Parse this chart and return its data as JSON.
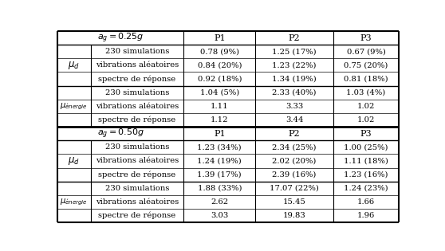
{
  "fig_width": 5.58,
  "fig_height": 3.15,
  "rows_25_mud": [
    [
      "230 simulations",
      "0.78 (9%)",
      "1.25 (17%)",
      "0.67 (9%)"
    ],
    [
      "vibrations aléatoires",
      "0.84 (20%)",
      "1.23 (22%)",
      "0.75 (20%)"
    ],
    [
      "spectre de réponse",
      "0.92 (18%)",
      "1.34 (19%)",
      "0.81 (18%)"
    ]
  ],
  "rows_25_mue": [
    [
      "230 simulations",
      "1.04 (5%)",
      "2.33 (40%)",
      "1.03 (4%)"
    ],
    [
      "vibrations aléatoires",
      "1.11",
      "3.33",
      "1.02"
    ],
    [
      "spectre de réponse",
      "1.12",
      "3.44",
      "1.02"
    ]
  ],
  "rows_50_mud": [
    [
      "230 simulations",
      "1.23 (34%)",
      "2.34 (25%)",
      "1.00 (25%)"
    ],
    [
      "vibrations aléatoires",
      "1.24 (19%)",
      "2.02 (20%)",
      "1.11 (18%)"
    ],
    [
      "spectre de réponse",
      "1.39 (17%)",
      "2.39 (16%)",
      "1.23 (16%)"
    ]
  ],
  "rows_50_mue": [
    [
      "230 simulations",
      "1.88 (33%)",
      "17.07 (22%)",
      "1.24 (23%)"
    ],
    [
      "vibrations aléatoires",
      "2.62",
      "15.45",
      "1.66"
    ],
    [
      "spectre de réponse",
      "3.03",
      "19.83",
      "1.96"
    ]
  ],
  "header1": "$a_g = 0.25g$",
  "header2": "$a_g = 0.50g$",
  "col_headers": [
    "P1",
    "P2",
    "P3"
  ],
  "mu_d_label": "$\\mu_d$",
  "mu_e_label": "$\\mu_{\\acute{e}nergie}$",
  "fs_header": 8.0,
  "fs_data": 7.2,
  "fs_label_d": 8.5,
  "fs_label_e": 7.2
}
